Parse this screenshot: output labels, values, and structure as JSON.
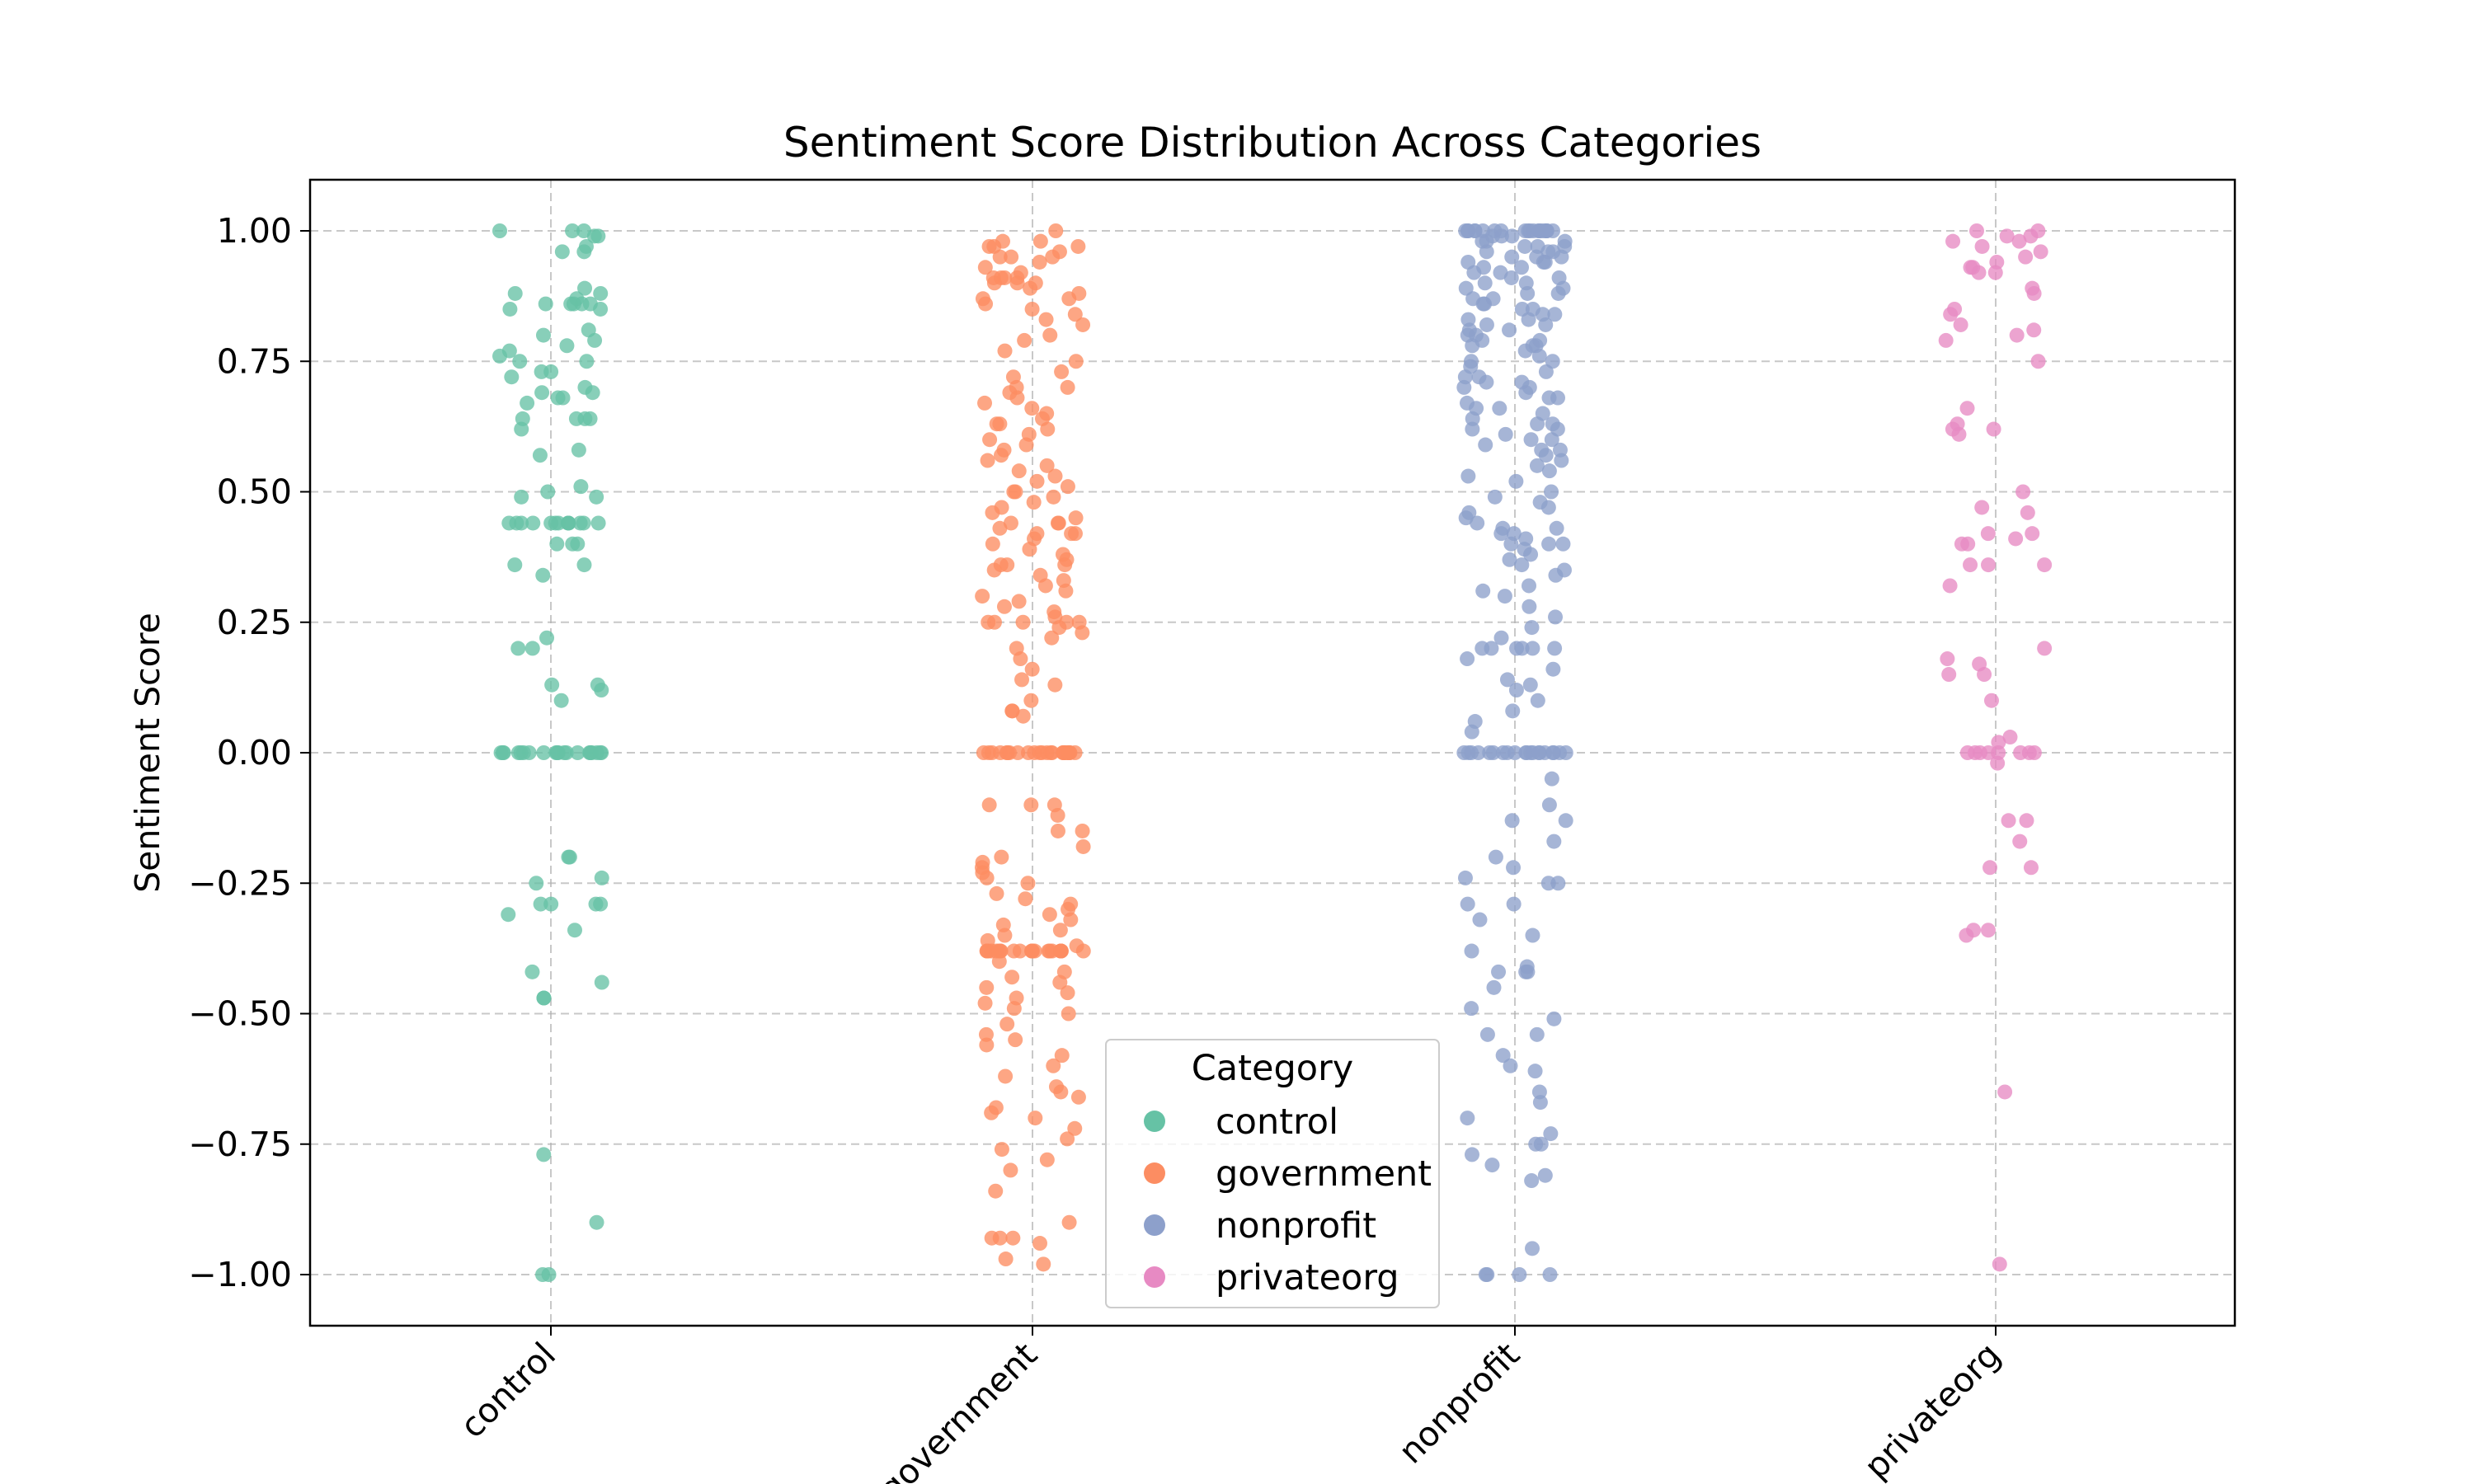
{
  "chart_data": {
    "type": "scatter",
    "title": "Sentiment Score Distribution Across Categories",
    "xlabel": "",
    "ylabel": "Sentiment Score",
    "ylim": [
      -1.1,
      1.1
    ],
    "grid": true,
    "categories": [
      "control",
      "government",
      "nonprofit",
      "privateorg"
    ],
    "yticks": [
      1.0,
      0.75,
      0.5,
      0.25,
      0.0,
      -0.25,
      -0.5,
      -0.75,
      -1.0
    ],
    "ytick_labels": [
      "1.00",
      "0.75",
      "0.50",
      "0.25",
      "0.00",
      "−0.25",
      "−0.50",
      "−0.75",
      "−1.00"
    ],
    "legend": {
      "title": "Category",
      "position": "lower center"
    },
    "series": [
      {
        "name": "control",
        "color": "#66c2a5",
        "values": [
          1.0,
          1.0,
          1.0,
          0.99,
          0.99,
          0.97,
          0.96,
          0.96,
          0.89,
          0.88,
          0.88,
          0.87,
          0.86,
          0.86,
          0.86,
          0.86,
          0.86,
          0.85,
          0.85,
          0.81,
          0.8,
          0.79,
          0.78,
          0.77,
          0.76,
          0.75,
          0.75,
          0.73,
          0.73,
          0.72,
          0.7,
          0.69,
          0.69,
          0.68,
          0.68,
          0.67,
          0.64,
          0.64,
          0.64,
          0.64,
          0.62,
          0.58,
          0.57,
          0.51,
          0.5,
          0.49,
          0.49,
          0.44,
          0.44,
          0.44,
          0.44,
          0.44,
          0.44,
          0.44,
          0.44,
          0.44,
          0.44,
          0.44,
          0.44,
          0.44,
          0.4,
          0.4,
          0.4,
          0.36,
          0.36,
          0.34,
          0.22,
          0.2,
          0.2,
          0.13,
          0.13,
          0.12,
          0.1,
          0.0,
          0.0,
          0.0,
          0.0,
          0.0,
          0.0,
          0.0,
          0.0,
          0.0,
          0.0,
          0.0,
          0.0,
          0.0,
          0.0,
          0.0,
          0.0,
          0.0,
          0.0,
          0.0,
          0.0,
          -0.2,
          -0.2,
          -0.24,
          -0.25,
          -0.29,
          -0.29,
          -0.29,
          -0.29,
          -0.31,
          -0.34,
          -0.42,
          -0.44,
          -0.47,
          -0.47,
          -0.77,
          -0.9,
          -1.0,
          -1.0
        ]
      },
      {
        "name": "government",
        "color": "#fc8d62",
        "values": [
          1.0,
          0.98,
          0.98,
          0.97,
          0.97,
          0.97,
          0.96,
          0.95,
          0.95,
          0.95,
          0.94,
          0.93,
          0.92,
          0.91,
          0.91,
          0.91,
          0.91,
          0.9,
          0.9,
          0.9,
          0.89,
          0.88,
          0.87,
          0.87,
          0.86,
          0.85,
          0.84,
          0.83,
          0.82,
          0.8,
          0.79,
          0.77,
          0.75,
          0.73,
          0.72,
          0.7,
          0.7,
          0.69,
          0.68,
          0.67,
          0.66,
          0.65,
          0.64,
          0.63,
          0.63,
          0.62,
          0.61,
          0.6,
          0.59,
          0.58,
          0.57,
          0.56,
          0.55,
          0.54,
          0.53,
          0.52,
          0.51,
          0.5,
          0.5,
          0.49,
          0.48,
          0.47,
          0.46,
          0.45,
          0.44,
          0.44,
          0.44,
          0.43,
          0.42,
          0.42,
          0.42,
          0.41,
          0.4,
          0.39,
          0.38,
          0.37,
          0.36,
          0.36,
          0.36,
          0.35,
          0.34,
          0.33,
          0.32,
          0.31,
          0.3,
          0.29,
          0.28,
          0.27,
          0.26,
          0.25,
          0.25,
          0.25,
          0.25,
          0.25,
          0.24,
          0.23,
          0.22,
          0.2,
          0.18,
          0.16,
          0.14,
          0.13,
          0.1,
          0.08,
          0.08,
          0.07,
          0.0,
          0.0,
          0.0,
          0.0,
          0.0,
          0.0,
          0.0,
          0.0,
          0.0,
          0.0,
          0.0,
          0.0,
          0.0,
          0.0,
          0.0,
          0.0,
          0.0,
          0.0,
          0.0,
          0.0,
          0.0,
          0.0,
          0.0,
          0.0,
          -0.1,
          -0.1,
          -0.1,
          -0.12,
          -0.15,
          -0.15,
          -0.18,
          -0.2,
          -0.21,
          -0.22,
          -0.23,
          -0.24,
          -0.25,
          -0.27,
          -0.28,
          -0.29,
          -0.3,
          -0.31,
          -0.32,
          -0.33,
          -0.34,
          -0.35,
          -0.36,
          -0.37,
          -0.38,
          -0.38,
          -0.38,
          -0.38,
          -0.38,
          -0.38,
          -0.38,
          -0.38,
          -0.38,
          -0.38,
          -0.38,
          -0.38,
          -0.38,
          -0.38,
          -0.38,
          -0.38,
          -0.38,
          -0.38,
          -0.38,
          -0.38,
          -0.38,
          -0.38,
          -0.4,
          -0.42,
          -0.43,
          -0.44,
          -0.45,
          -0.46,
          -0.47,
          -0.48,
          -0.49,
          -0.5,
          -0.52,
          -0.54,
          -0.55,
          -0.56,
          -0.58,
          -0.6,
          -0.62,
          -0.64,
          -0.65,
          -0.66,
          -0.68,
          -0.69,
          -0.7,
          -0.72,
          -0.74,
          -0.76,
          -0.78,
          -0.8,
          -0.84,
          -0.9,
          -0.93,
          -0.93,
          -0.93,
          -0.94,
          -0.97,
          -0.98
        ]
      },
      {
        "name": "nonprofit",
        "color": "#8da0cb",
        "values": [
          1.0,
          1.0,
          1.0,
          1.0,
          1.0,
          1.0,
          1.0,
          1.0,
          1.0,
          1.0,
          1.0,
          1.0,
          1.0,
          1.0,
          1.0,
          1.0,
          1.0,
          1.0,
          1.0,
          1.0,
          0.99,
          0.99,
          0.99,
          0.98,
          0.98,
          0.98,
          0.97,
          0.97,
          0.97,
          0.96,
          0.96,
          0.96,
          0.95,
          0.95,
          0.95,
          0.94,
          0.94,
          0.94,
          0.93,
          0.93,
          0.92,
          0.92,
          0.91,
          0.91,
          0.9,
          0.9,
          0.89,
          0.89,
          0.88,
          0.88,
          0.87,
          0.87,
          0.86,
          0.86,
          0.85,
          0.85,
          0.84,
          0.84,
          0.83,
          0.83,
          0.82,
          0.82,
          0.81,
          0.81,
          0.8,
          0.8,
          0.79,
          0.79,
          0.78,
          0.78,
          0.78,
          0.77,
          0.76,
          0.75,
          0.75,
          0.74,
          0.73,
          0.72,
          0.72,
          0.71,
          0.71,
          0.7,
          0.7,
          0.69,
          0.68,
          0.68,
          0.67,
          0.66,
          0.66,
          0.65,
          0.64,
          0.63,
          0.63,
          0.62,
          0.62,
          0.61,
          0.6,
          0.6,
          0.59,
          0.58,
          0.58,
          0.57,
          0.56,
          0.55,
          0.54,
          0.53,
          0.52,
          0.5,
          0.49,
          0.48,
          0.47,
          0.46,
          0.45,
          0.44,
          0.43,
          0.43,
          0.42,
          0.42,
          0.41,
          0.4,
          0.4,
          0.4,
          0.39,
          0.38,
          0.37,
          0.36,
          0.35,
          0.34,
          0.32,
          0.31,
          0.3,
          0.28,
          0.26,
          0.24,
          0.22,
          0.2,
          0.2,
          0.2,
          0.2,
          0.2,
          0.2,
          0.18,
          0.16,
          0.14,
          0.13,
          0.12,
          0.1,
          0.08,
          0.06,
          0.04,
          0.0,
          0.0,
          0.0,
          0.0,
          0.0,
          0.0,
          0.0,
          0.0,
          0.0,
          0.0,
          0.0,
          0.0,
          0.0,
          0.0,
          0.0,
          0.0,
          0.0,
          0.0,
          0.0,
          0.0,
          -0.05,
          -0.1,
          -0.13,
          -0.13,
          -0.17,
          -0.2,
          -0.22,
          -0.24,
          -0.25,
          -0.25,
          -0.29,
          -0.29,
          -0.32,
          -0.35,
          -0.38,
          -0.41,
          -0.42,
          -0.42,
          -0.42,
          -0.45,
          -0.49,
          -0.51,
          -0.54,
          -0.54,
          -0.58,
          -0.6,
          -0.61,
          -0.65,
          -0.67,
          -0.7,
          -0.73,
          -0.75,
          -0.75,
          -0.77,
          -0.79,
          -0.81,
          -0.82,
          -0.95,
          -1.0,
          -1.0,
          -1.0,
          -1.0
        ]
      },
      {
        "name": "privateorg",
        "color": "#e78ac3",
        "values": [
          1.0,
          1.0,
          0.99,
          0.99,
          0.98,
          0.98,
          0.97,
          0.96,
          0.95,
          0.94,
          0.93,
          0.93,
          0.92,
          0.92,
          0.89,
          0.88,
          0.85,
          0.84,
          0.82,
          0.81,
          0.8,
          0.79,
          0.75,
          0.66,
          0.63,
          0.62,
          0.62,
          0.61,
          0.5,
          0.47,
          0.46,
          0.42,
          0.42,
          0.41,
          0.4,
          0.4,
          0.36,
          0.36,
          0.36,
          0.32,
          0.2,
          0.18,
          0.17,
          0.15,
          0.15,
          0.1,
          0.03,
          0.02,
          0.0,
          0.0,
          0.0,
          0.0,
          0.0,
          0.0,
          0.0,
          0.0,
          -0.02,
          -0.13,
          -0.13,
          -0.17,
          -0.22,
          -0.22,
          -0.34,
          -0.34,
          -0.35,
          -0.65,
          -0.98
        ]
      }
    ]
  }
}
